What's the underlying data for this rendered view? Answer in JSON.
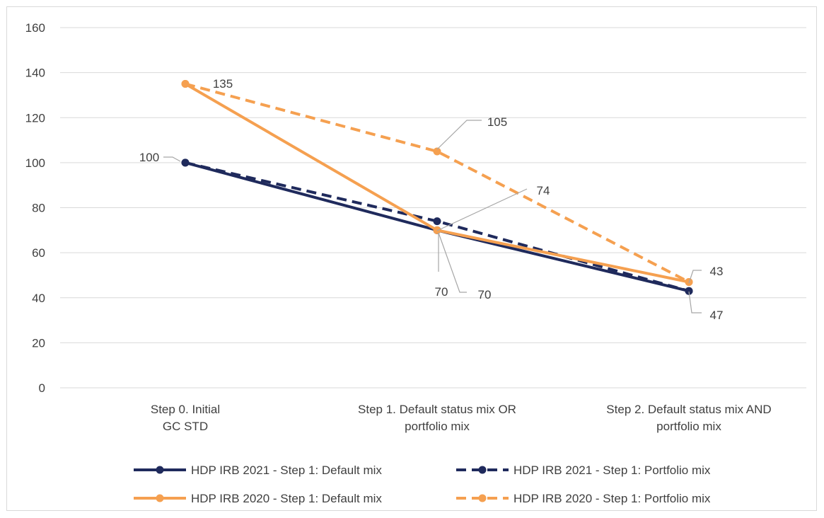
{
  "chart_data": {
    "type": "line",
    "title": "",
    "xlabel": "",
    "ylabel": "",
    "ylim": [
      0,
      160
    ],
    "yticks": [
      0,
      20,
      40,
      60,
      80,
      100,
      120,
      140,
      160
    ],
    "grid": true,
    "legend_position": "bottom",
    "categories": [
      [
        "Step 0. Initial",
        "GC STD"
      ],
      [
        "Step 1. Default status mix OR",
        "portfolio mix"
      ],
      [
        "Step 2. Default status mix AND",
        "portfolio mix"
      ]
    ],
    "series": [
      {
        "name": "HDP IRB 2021 - Step 1: Default mix",
        "values": [
          100,
          70,
          43
        ],
        "color": "#1f2a5c",
        "dash": "solid"
      },
      {
        "name": "HDP IRB 2021 - Step 1: Portfolio mix",
        "values": [
          100,
          74,
          43
        ],
        "color": "#1f2a5c",
        "dash": "dashed"
      },
      {
        "name": "HDP IRB 2020 - Step 1: Default mix",
        "values": [
          135,
          70,
          47
        ],
        "color": "#f5a050",
        "dash": "solid"
      },
      {
        "name": "HDP IRB 2020 - Step 1: Portfolio mix",
        "values": [
          135,
          105,
          47
        ],
        "color": "#f5a050",
        "dash": "dashed"
      }
    ],
    "data_labels": [
      {
        "text": "100"
      },
      {
        "text": "135"
      },
      {
        "text": "105"
      },
      {
        "text": "74"
      },
      {
        "text": "70"
      },
      {
        "text": "70"
      },
      {
        "text": "43"
      },
      {
        "text": "47"
      }
    ]
  }
}
